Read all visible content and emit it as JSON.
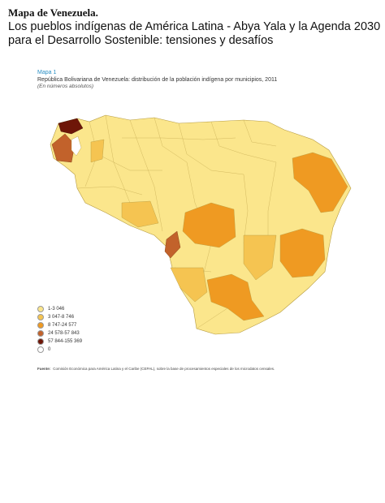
{
  "header": {
    "title": "Mapa de Venezuela.",
    "subtitle": "Los pueblos indígenas de América Latina - Abya Yala y la Agenda 2030 para el Desarrollo Sostenible: tensiones y desafíos"
  },
  "figure": {
    "label": "Mapa 1",
    "title": "República Bolivariana de Venezuela: distribución de la población indígena por municipios, 2011",
    "note": "(En números absolutos)"
  },
  "legend": [
    {
      "label": "1-3 046",
      "color": "#fbe68c"
    },
    {
      "label": "3 047-8 746",
      "color": "#f5c451"
    },
    {
      "label": "8 747-24 577",
      "color": "#ef9a22"
    },
    {
      "label": "24 578-57 843",
      "color": "#c2622b"
    },
    {
      "label": "57 844-155 369",
      "color": "#6e1608"
    },
    {
      "label": "0",
      "color": "#ffffff"
    }
  ],
  "source": {
    "label": "Fuente:",
    "text": "Comisión Económica para América Latina y el Caribe (CEPAL), sobre la base de procesamientos especiales de los microdatos censales."
  }
}
